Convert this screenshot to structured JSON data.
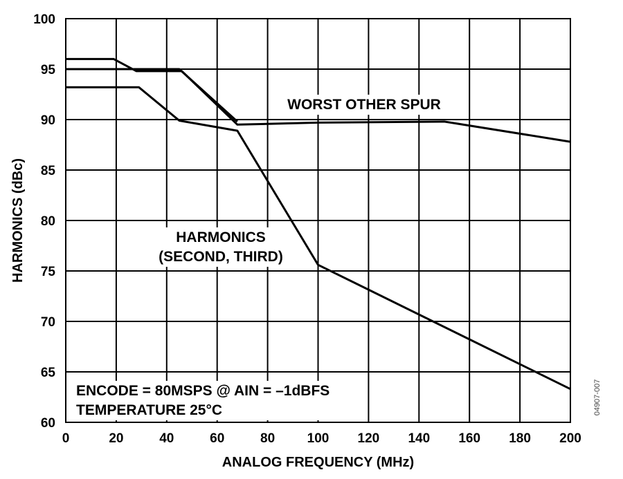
{
  "chart_data": {
    "type": "line",
    "title": "",
    "xlabel": "ANALOG FREQUENCY (MHz)",
    "ylabel": "HARMONICS (dBc)",
    "xlim": [
      0,
      200
    ],
    "ylim": [
      60,
      100
    ],
    "x_ticks": [
      0,
      20,
      40,
      60,
      80,
      100,
      120,
      140,
      160,
      180,
      200
    ],
    "y_ticks": [
      60,
      65,
      70,
      75,
      80,
      85,
      90,
      95,
      100
    ],
    "grid": true,
    "series": [
      {
        "name": "WORST OTHER SPUR",
        "x": [
          0,
          19,
          28,
          46,
          68,
          100,
          150,
          200
        ],
        "y": [
          96,
          96,
          94.8,
          94.8,
          89.5,
          89.7,
          89.8,
          87.8
        ]
      },
      {
        "name": "HARMONICS (SECOND, THIRD)",
        "x": [
          0,
          29,
          45,
          68,
          100,
          200
        ],
        "y": [
          93.2,
          93.2,
          89.9,
          88.9,
          75.6,
          63.3
        ]
      },
      {
        "name": "",
        "x": [
          0,
          28,
          45,
          68
        ],
        "y": [
          95,
          95,
          95,
          89.8
        ]
      }
    ],
    "annotations": [
      {
        "id": "worst_spur",
        "lines": [
          "WORST OTHER SPUR"
        ]
      },
      {
        "id": "harmonics",
        "lines": [
          "HARMONICS",
          "(SECOND, THIRD)"
        ]
      },
      {
        "id": "conditions",
        "lines": [
          "ENCODE = 80MSPS @ AIN = –1dBFS",
          "TEMPERATURE 25°C"
        ]
      }
    ],
    "figure_id": "04907-007"
  }
}
